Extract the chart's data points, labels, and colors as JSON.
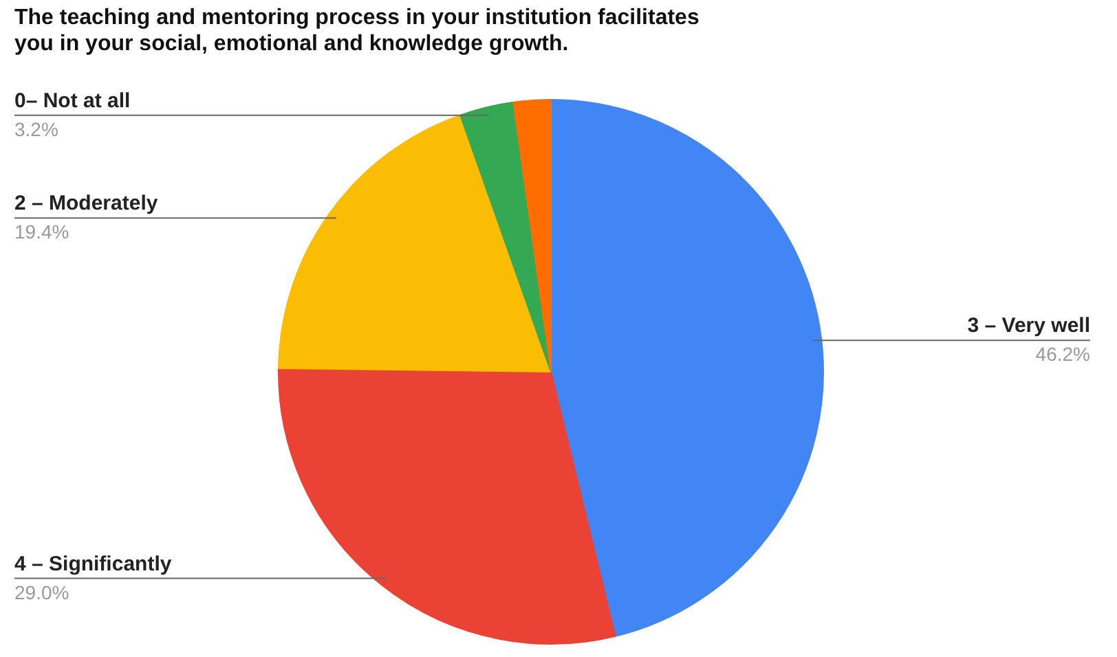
{
  "chart_data": {
    "type": "pie",
    "title": "The teaching and mentoring process in your institution facilitates you in  your   social, emotional and  knowledge  growth.",
    "categories": [
      "3 – Very well",
      "4 – Significantly",
      "2 – Moderately",
      "0– Not at all",
      null
    ],
    "values": [
      46.2,
      29.0,
      19.4,
      3.2,
      2.2
    ],
    "value_labels": [
      "46.2%",
      "29.0%",
      "19.4%",
      "3.2%",
      null
    ],
    "colors": [
      "#4285f4",
      "#ea4335",
      "#fbbc04",
      "#34a853",
      "#ff6d01"
    ]
  }
}
